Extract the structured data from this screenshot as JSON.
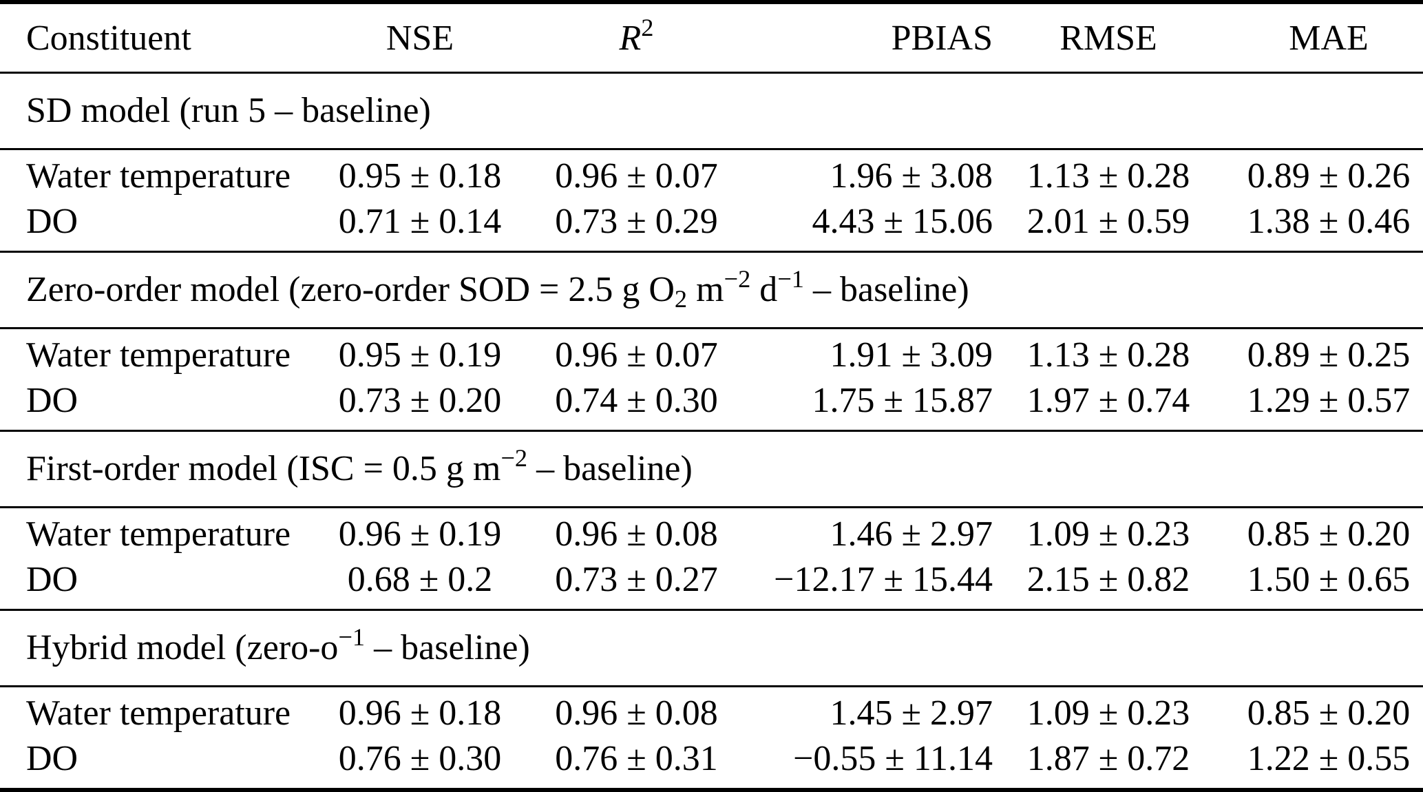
{
  "page": {
    "background_color": "#ffffff",
    "text_color": "#000000"
  },
  "table": {
    "columns": [
      "Constituent",
      "NSE",
      "*R*^{2}",
      "PBIAS",
      "RMSE",
      "MAE"
    ],
    "sections": [
      {
        "title": "SD model (run 5 – baseline)",
        "rows": [
          {
            "constituent": "Water temperature",
            "nse": "0.95 ± 0.18",
            "r2": "0.96 ± 0.07",
            "pbias": "1.96 ± 3.08",
            "rmse": "1.13 ± 0.28",
            "mae": "0.89 ± 0.26"
          },
          {
            "constituent": "DO",
            "nse": "0.71 ± 0.14",
            "r2": "0.73 ± 0.29",
            "pbias": "4.43 ± 15.06",
            "rmse": "2.01 ± 0.59",
            "mae": "1.38 ± 0.46"
          }
        ]
      },
      {
        "title": "Zero-order model (zero-order SOD = 2.5 g O_{2} m^{−2} d^{−1} – baseline)",
        "rows": [
          {
            "constituent": "Water temperature",
            "nse": "0.95 ± 0.19",
            "r2": "0.96 ± 0.07",
            "pbias": "1.91 ± 3.09",
            "rmse": "1.13 ± 0.28",
            "mae": "0.89 ± 0.25"
          },
          {
            "constituent": "DO",
            "nse": "0.73 ± 0.20",
            "r2": "0.74 ± 0.30",
            "pbias": "1.75 ± 15.87",
            "rmse": "1.97 ± 0.74",
            "mae": "1.29 ± 0.57"
          }
        ]
      },
      {
        "title": "First-order model (ISC = 0.5 g m^{−2} – baseline)",
        "rows": [
          {
            "constituent": "Water temperature",
            "nse": "0.96 ± 0.19",
            "r2": "0.96 ± 0.08",
            "pbias": "1.46 ± 2.97",
            "rmse": "1.09 ± 0.23",
            "mae": "0.85 ± 0.20"
          },
          {
            "constituent": "DO",
            "nse": "0.68 ± 0.2",
            "r2": "0.73 ± 0.27",
            "pbias": "−12.17 ± 15.44",
            "rmse": "2.15 ± 0.82",
            "mae": "1.50 ± 0.65"
          }
        ]
      },
      {
        "title": "Hybrid model (zero-o^{−1} – baseline)",
        "rows": [
          {
            "constituent": "Water temperature",
            "nse": "0.96 ± 0.18",
            "r2": "0.96 ± 0.08",
            "pbias": "1.45 ± 2.97",
            "rmse": "1.09 ± 0.23",
            "mae": "0.85 ± 0.20"
          },
          {
            "constituent": "DO",
            "nse": "0.76 ± 0.30",
            "r2": "0.76 ± 0.31",
            "pbias": "−0.55 ± 11.14",
            "rmse": "1.87 ± 0.72",
            "mae": "1.22 ± 0.55"
          }
        ]
      }
    ]
  }
}
